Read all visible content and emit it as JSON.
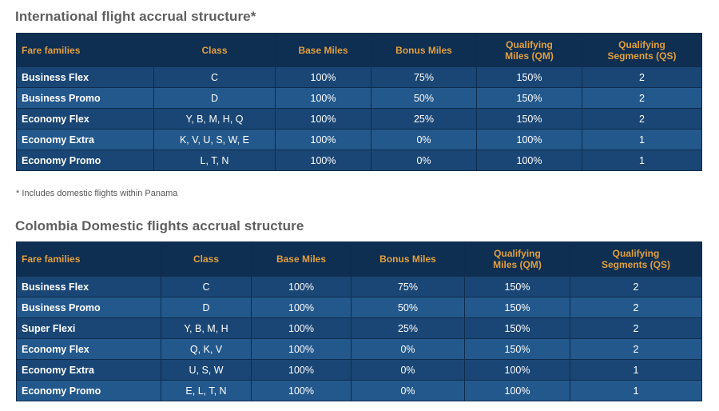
{
  "international": {
    "title": "International flight accrual structure*",
    "headers": [
      "Fare families",
      "Class",
      "Base Miles",
      "Bonus Miles",
      "Qualifying\nMiles (QM)",
      "Qualifying\nSegments (QS)"
    ],
    "rows": [
      [
        "Business Flex",
        "C",
        "100%",
        "75%",
        "150%",
        "2"
      ],
      [
        "Business Promo",
        "D",
        "100%",
        "50%",
        "150%",
        "2"
      ],
      [
        "Economy Flex",
        "Y, B, M, H, Q",
        "100%",
        "25%",
        "150%",
        "2"
      ],
      [
        "Economy Extra",
        "K, V, U, S, W, E",
        "100%",
        "0%",
        "100%",
        "1"
      ],
      [
        "Economy Promo",
        "L, T, N",
        "100%",
        "0%",
        "100%",
        "1"
      ]
    ],
    "footnote": "* Includes domestic flights within Panama"
  },
  "colombia": {
    "title": "Colombia Domestic flights accrual structure",
    "headers": [
      "Fare families",
      "Class",
      "Base Miles",
      "Bonus Miles",
      "Qualifying\nMiles (QM)",
      "Qualifying\nSegments (QS)"
    ],
    "rows": [
      [
        "Business Flex",
        "C",
        "100%",
        "75%",
        "150%",
        "2"
      ],
      [
        "Business Promo",
        "D",
        "100%",
        "50%",
        "150%",
        "2"
      ],
      [
        "Super Flexi",
        "Y, B, M, H",
        "100%",
        "25%",
        "150%",
        "2"
      ],
      [
        "Economy Flex",
        "Q, K, V",
        "100%",
        "0%",
        "150%",
        "2"
      ],
      [
        "Economy Extra",
        "U, S, W",
        "100%",
        "0%",
        "100%",
        "1"
      ],
      [
        "Economy Promo",
        "E, L, T, N",
        "100%",
        "0%",
        "100%",
        "1"
      ]
    ]
  },
  "colors": {
    "header_bg": "#0e2e52",
    "header_text": "#e2a03c",
    "row_bg": "#1e4f80",
    "title_text": "#5f5f5f"
  }
}
